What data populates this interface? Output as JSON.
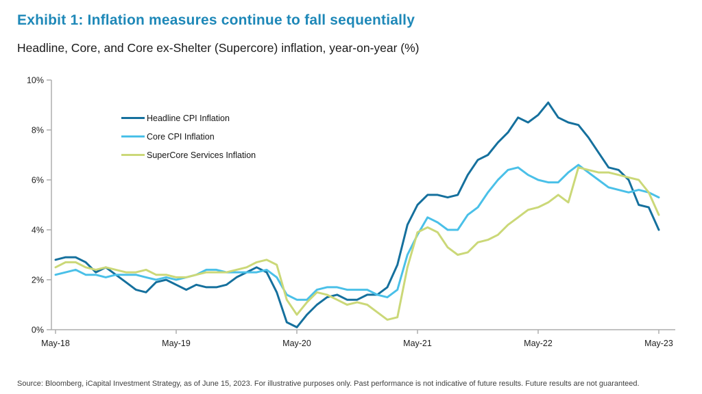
{
  "header": {
    "title": "Exhibit 1: Inflation measures continue to fall sequentially",
    "subtitle": "Headline, Core, and Core ex-Shelter (Supercore) inflation, year-on-year (%)",
    "title_color": "#1e88b8"
  },
  "source": {
    "text": "Source: Bloomberg, iCapital Investment Strategy, as of June 15, 2023. For illustrative purposes only. Past performance is not indicative of future results. Future results are not guaranteed."
  },
  "chart_data": {
    "type": "line",
    "title": "Headline, Core, and Core ex-Shelter (Supercore) inflation, year-on-year (%)",
    "xlabel": "",
    "ylabel": "",
    "ylim": [
      0,
      10
    ],
    "y_ticks": [
      0,
      2,
      4,
      6,
      8,
      10
    ],
    "y_tick_suffix": "%",
    "grid": false,
    "legend_position": "inside-top-left",
    "axis_color": "#adadad",
    "x": [
      "May-18",
      "Jun-18",
      "Jul-18",
      "Aug-18",
      "Sep-18",
      "Oct-18",
      "Nov-18",
      "Dec-18",
      "Jan-19",
      "Feb-19",
      "Mar-19",
      "Apr-19",
      "May-19",
      "Jun-19",
      "Jul-19",
      "Aug-19",
      "Sep-19",
      "Oct-19",
      "Nov-19",
      "Dec-19",
      "Jan-20",
      "Feb-20",
      "Mar-20",
      "Apr-20",
      "May-20",
      "Jun-20",
      "Jul-20",
      "Aug-20",
      "Sep-20",
      "Oct-20",
      "Nov-20",
      "Dec-20",
      "Jan-21",
      "Feb-21",
      "Mar-21",
      "Apr-21",
      "May-21",
      "Jun-21",
      "Jul-21",
      "Aug-21",
      "Sep-21",
      "Oct-21",
      "Nov-21",
      "Dec-21",
      "Jan-22",
      "Feb-22",
      "Mar-22",
      "Apr-22",
      "May-22",
      "Jun-22",
      "Jul-22",
      "Aug-22",
      "Sep-22",
      "Oct-22",
      "Nov-22",
      "Dec-22",
      "Jan-23",
      "Feb-23",
      "Mar-23",
      "Apr-23",
      "May-23"
    ],
    "x_tick_labels": [
      "May-18",
      "May-19",
      "May-20",
      "May-21",
      "May-22",
      "May-23"
    ],
    "series": [
      {
        "name": "Headline CPI Inflation",
        "color": "#15709d",
        "values": [
          2.8,
          2.9,
          2.9,
          2.7,
          2.3,
          2.5,
          2.2,
          1.9,
          1.6,
          1.5,
          1.9,
          2.0,
          1.8,
          1.6,
          1.8,
          1.7,
          1.7,
          1.8,
          2.1,
          2.3,
          2.5,
          2.3,
          1.5,
          0.3,
          0.1,
          0.6,
          1.0,
          1.3,
          1.4,
          1.2,
          1.2,
          1.4,
          1.4,
          1.7,
          2.6,
          4.2,
          5.0,
          5.4,
          5.4,
          5.3,
          5.4,
          6.2,
          6.8,
          7.0,
          7.5,
          7.9,
          8.5,
          8.3,
          8.6,
          9.1,
          8.5,
          8.3,
          8.2,
          7.7,
          7.1,
          6.5,
          6.4,
          6.0,
          5.0,
          4.9,
          4.0
        ]
      },
      {
        "name": "Core CPI Inflation",
        "color": "#4ac0e8",
        "values": [
          2.2,
          2.3,
          2.4,
          2.2,
          2.2,
          2.1,
          2.2,
          2.2,
          2.2,
          2.1,
          2.0,
          2.1,
          2.0,
          2.1,
          2.2,
          2.4,
          2.4,
          2.3,
          2.3,
          2.3,
          2.3,
          2.4,
          2.1,
          1.4,
          1.2,
          1.2,
          1.6,
          1.7,
          1.7,
          1.6,
          1.6,
          1.6,
          1.4,
          1.3,
          1.6,
          3.0,
          3.8,
          4.5,
          4.3,
          4.0,
          4.0,
          4.6,
          4.9,
          5.5,
          6.0,
          6.4,
          6.5,
          6.2,
          6.0,
          5.9,
          5.9,
          6.3,
          6.6,
          6.3,
          6.0,
          5.7,
          5.6,
          5.5,
          5.6,
          5.5,
          5.3
        ]
      },
      {
        "name": "SuperCore Services Inflation",
        "color": "#cbd878",
        "values": [
          2.5,
          2.7,
          2.7,
          2.5,
          2.4,
          2.5,
          2.4,
          2.3,
          2.3,
          2.4,
          2.2,
          2.2,
          2.1,
          2.1,
          2.2,
          2.3,
          2.3,
          2.3,
          2.4,
          2.5,
          2.7,
          2.8,
          2.6,
          1.2,
          0.6,
          1.1,
          1.5,
          1.4,
          1.2,
          1.0,
          1.1,
          1.0,
          0.7,
          0.4,
          0.5,
          2.5,
          3.9,
          4.1,
          3.9,
          3.3,
          3.0,
          3.1,
          3.5,
          3.6,
          3.8,
          4.2,
          4.5,
          4.8,
          4.9,
          5.1,
          5.4,
          5.1,
          6.5,
          6.4,
          6.3,
          6.3,
          6.2,
          6.1,
          6.0,
          5.5,
          4.6
        ]
      }
    ]
  }
}
